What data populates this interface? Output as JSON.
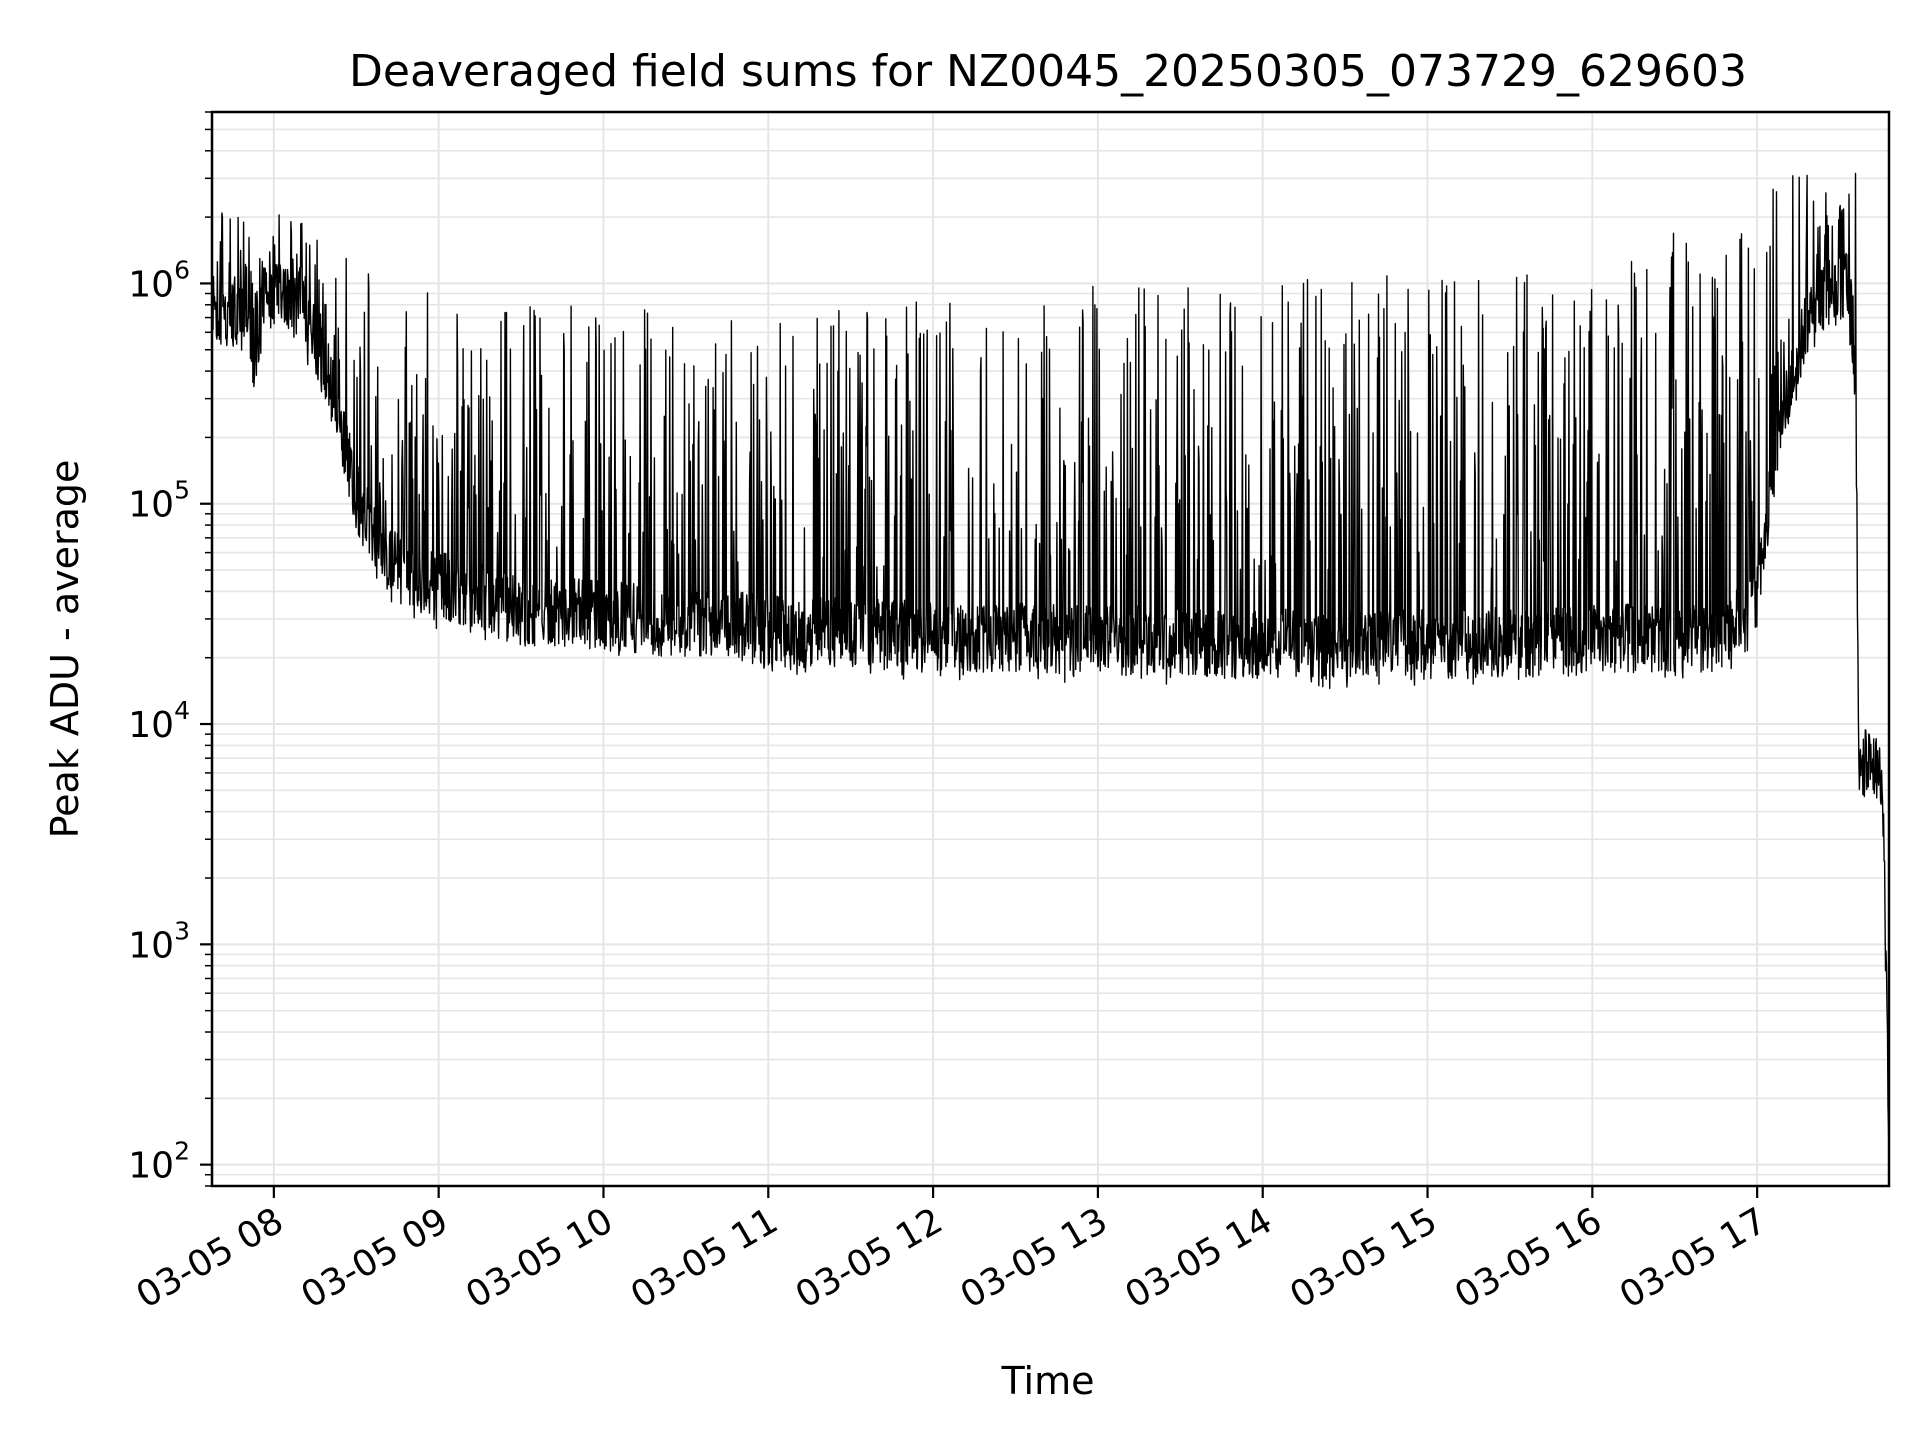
{
  "chart_data": {
    "type": "line",
    "title": "Deaveraged field sums for NZ0045_20250305_073729_629603",
    "xlabel": "Time",
    "ylabel": "Peak ADU - average",
    "yscale": "log",
    "ylim": [
      80,
      6000000
    ],
    "xlim": [
      "2025-03-05 07:37:29",
      "2025-03-05 17:48:00"
    ],
    "grid": true,
    "line_color": "#000000",
    "grid_color": "#e5e5e5",
    "x_ticks": [
      {
        "t": "2025-03-05 08:00",
        "label": "03-05 08"
      },
      {
        "t": "2025-03-05 09:00",
        "label": "03-05 09"
      },
      {
        "t": "2025-03-05 10:00",
        "label": "03-05 10"
      },
      {
        "t": "2025-03-05 11:00",
        "label": "03-05 11"
      },
      {
        "t": "2025-03-05 12:00",
        "label": "03-05 12"
      },
      {
        "t": "2025-03-05 13:00",
        "label": "03-05 13"
      },
      {
        "t": "2025-03-05 14:00",
        "label": "03-05 14"
      },
      {
        "t": "2025-03-05 15:00",
        "label": "03-05 15"
      },
      {
        "t": "2025-03-05 16:00",
        "label": "03-05 16"
      },
      {
        "t": "2025-03-05 17:00",
        "label": "03-05 17"
      }
    ],
    "y_ticks": [
      {
        "value": 100,
        "base": "10",
        "exp": "2"
      },
      {
        "value": 1000,
        "base": "10",
        "exp": "3"
      },
      {
        "value": 10000,
        "base": "10",
        "exp": "4"
      },
      {
        "value": 100000,
        "base": "10",
        "exp": "5"
      },
      {
        "value": 1000000,
        "base": "10",
        "exp": "6"
      }
    ],
    "series": [
      {
        "baseline": [
          [
            "2025-03-05 07:37",
            700000
          ],
          [
            "2025-03-05 07:50",
            700000
          ],
          [
            "2025-03-05 07:53",
            450000
          ],
          [
            "2025-03-05 07:56",
            900000
          ],
          [
            "2025-03-05 08:10",
            800000
          ],
          [
            "2025-03-05 08:20",
            380000
          ],
          [
            "2025-03-05 08:30",
            110000
          ],
          [
            "2025-03-05 08:40",
            55000
          ],
          [
            "2025-03-05 09:00",
            42000
          ],
          [
            "2025-03-05 09:30",
            33000
          ],
          [
            "2025-03-05 10:00",
            31000
          ],
          [
            "2025-03-05 11:00",
            27000
          ],
          [
            "2025-03-05 12:00",
            25000
          ],
          [
            "2025-03-05 13:00",
            24000
          ],
          [
            "2025-03-05 14:00",
            23000
          ],
          [
            "2025-03-05 15:00",
            23000
          ],
          [
            "2025-03-05 16:00",
            24000
          ],
          [
            "2025-03-05 16:50",
            25000
          ],
          [
            "2025-03-05 17:00",
            40000
          ],
          [
            "2025-03-05 17:08",
            220000
          ],
          [
            "2025-03-05 17:18",
            650000
          ],
          [
            "2025-03-05 17:28",
            1000000
          ],
          [
            "2025-03-05 17:33",
            1000000
          ],
          [
            "2025-03-05 17:36",
            300000
          ],
          [
            "2025-03-05 17:37",
            7000
          ],
          [
            "2025-03-05 17:45",
            6000
          ],
          [
            "2025-03-05 17:46",
            3000
          ],
          [
            "2025-03-05 17:48",
            150
          ]
        ],
        "peaks": [
          [
            "2025-03-05 08:00",
            2200000
          ],
          [
            "2025-03-05 08:30",
            1400000
          ],
          [
            "2025-03-05 09:00",
            900000
          ],
          [
            "2025-03-05 10:00",
            850000
          ],
          [
            "2025-03-05 11:00",
            700000
          ],
          [
            "2025-03-05 12:00",
            900000
          ],
          [
            "2025-03-05 13:00",
            1000000
          ],
          [
            "2025-03-05 14:00",
            1100000
          ],
          [
            "2025-03-05 15:00",
            1100000
          ],
          [
            "2025-03-05 16:00",
            1150000
          ],
          [
            "2025-03-05 17:15",
            3300000
          ]
        ]
      }
    ]
  }
}
